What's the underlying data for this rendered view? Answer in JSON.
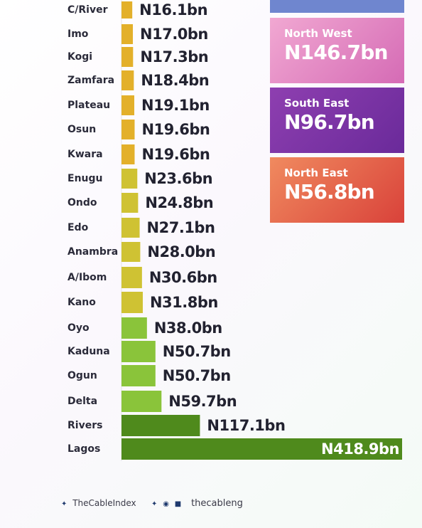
{
  "chart_data": {
    "type": "bar",
    "orientation": "horizontal",
    "categories": [
      "C/River",
      "Imo",
      "Kogi",
      "Zamfara",
      "Plateau",
      "Osun",
      "Kwara",
      "Enugu",
      "Ondo",
      "Edo",
      "Anambra",
      "A/Ibom",
      "Kano",
      "Oyo",
      "Kaduna",
      "Ogun",
      "Delta",
      "Rivers",
      "Lagos"
    ],
    "values": [
      16.1,
      17.0,
      17.3,
      18.4,
      19.1,
      19.6,
      19.6,
      23.6,
      24.8,
      27.1,
      28.0,
      30.6,
      31.8,
      38.0,
      50.7,
      50.7,
      59.7,
      117.1,
      418.9
    ],
    "value_labels": [
      "N16.1bn",
      "N17.0bn",
      "N17.3bn",
      "N18.4bn",
      "N19.1bn",
      "N19.6bn",
      "N19.6bn",
      "N23.6bn",
      "N24.8bn",
      "N27.1bn",
      "N28.0bn",
      "N30.6bn",
      "N31.8bn",
      "N38.0bn",
      "N50.7bn",
      "N50.7bn",
      "N59.7bn",
      "N117.1bn",
      "N418.9bn"
    ],
    "bar_colors": [
      "#e3b02a",
      "#e3b02a",
      "#e3b02a",
      "#e3b02a",
      "#e3b02a",
      "#e3b02a",
      "#e3b02a",
      "#cfc233",
      "#cfc233",
      "#cfc233",
      "#cfc233",
      "#cfc233",
      "#cfc233",
      "#8ac43a",
      "#8ac43a",
      "#8ac43a",
      "#8ac43a",
      "#4f8a1c",
      "#4f8a1c"
    ],
    "title": "",
    "xlabel": "",
    "ylabel": "",
    "grid": false
  },
  "regions": [
    {
      "name": "North West",
      "value": "N146.7bn",
      "color_from": "#f1a8d2",
      "color_to": "#d56bb5"
    },
    {
      "name": "South East",
      "value": "N96.7bn",
      "color_from": "#8e3fb0",
      "color_to": "#6a2a9a"
    },
    {
      "name": "North East",
      "value": "N56.8bn",
      "color_from": "#f08a5f",
      "color_to": "#d9423a"
    }
  ],
  "footer": {
    "left_handle": "TheCableIndex",
    "right_handle": "thecableng",
    "left_icon": "twitter-icon",
    "right_icons": [
      "twitter-icon",
      "instagram-icon",
      "facebook-icon"
    ]
  }
}
